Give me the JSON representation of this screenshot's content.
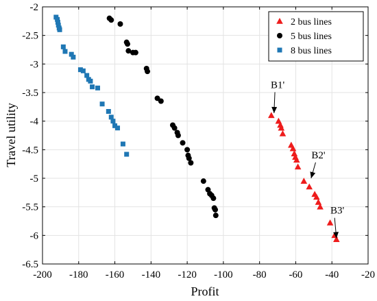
{
  "chart_data": {
    "type": "scatter",
    "title": "",
    "xlabel": "Profit",
    "ylabel": "Travel utility",
    "xlim": [
      -200,
      -20
    ],
    "ylim": [
      -6.5,
      -2
    ],
    "xticks": [
      -200,
      -180,
      -160,
      -140,
      -120,
      -100,
      -80,
      -60,
      -40,
      -20
    ],
    "yticks": [
      -6.5,
      -6,
      -5.5,
      -5,
      -4.5,
      -4,
      -3.5,
      -3,
      -2.5,
      -2
    ],
    "xtick_labels": [
      "-200",
      "-180",
      "-160",
      "-140",
      "-120",
      "-100",
      "-80",
      "-60",
      "-40",
      "-20"
    ],
    "ytick_labels": [
      "-6.5",
      "-6",
      "-5.5",
      "-5",
      "-4.5",
      "-4",
      "-3.5",
      "-3",
      "-2.5",
      "-2"
    ],
    "grid": true,
    "legend_position": "top-right",
    "series": [
      {
        "name": "2 bus lines",
        "marker": "triangle",
        "color": "#ee1c1c",
        "points": [
          [
            -73.5,
            -3.9
          ],
          [
            -69.5,
            -4.0
          ],
          [
            -68.5,
            -4.07
          ],
          [
            -68,
            -4.12
          ],
          [
            -67.2,
            -4.22
          ],
          [
            -62.5,
            -4.42
          ],
          [
            -61.5,
            -4.48
          ],
          [
            -60.8,
            -4.57
          ],
          [
            -60.2,
            -4.63
          ],
          [
            -59.5,
            -4.68
          ],
          [
            -58.8,
            -4.8
          ],
          [
            -55.5,
            -5.05
          ],
          [
            -52.5,
            -5.15
          ],
          [
            -49.5,
            -5.28
          ],
          [
            -48.5,
            -5.33
          ],
          [
            -47.5,
            -5.42
          ],
          [
            -46.5,
            -5.5
          ],
          [
            -41,
            -5.78
          ],
          [
            -38.5,
            -6.0
          ],
          [
            -37.5,
            -6.07
          ]
        ]
      },
      {
        "name": "5 bus lines",
        "marker": "circle",
        "color": "#000000",
        "points": [
          [
            -163,
            -2.2
          ],
          [
            -162,
            -2.23
          ],
          [
            -157,
            -2.3
          ],
          [
            -153.5,
            -2.62
          ],
          [
            -153,
            -2.65
          ],
          [
            -152.5,
            -2.77
          ],
          [
            -150,
            -2.8
          ],
          [
            -148.5,
            -2.8
          ],
          [
            -142.5,
            -3.08
          ],
          [
            -142,
            -3.13
          ],
          [
            -136.5,
            -3.6
          ],
          [
            -134.5,
            -3.65
          ],
          [
            -128,
            -4.07
          ],
          [
            -127,
            -4.12
          ],
          [
            -125.5,
            -4.2
          ],
          [
            -125,
            -4.25
          ],
          [
            -122.5,
            -4.38
          ],
          [
            -120,
            -4.5
          ],
          [
            -119.5,
            -4.6
          ],
          [
            -119,
            -4.65
          ],
          [
            -118,
            -4.73
          ],
          [
            -111,
            -5.05
          ],
          [
            -108.5,
            -5.2
          ],
          [
            -107.5,
            -5.27
          ],
          [
            -106.5,
            -5.3
          ],
          [
            -105.5,
            -5.35
          ],
          [
            -105,
            -5.52
          ],
          [
            -104.5,
            -5.55
          ],
          [
            -104.2,
            -5.65
          ]
        ]
      },
      {
        "name": "8 bus lines",
        "marker": "square",
        "color": "#1f77b4",
        "points": [
          [
            -192.5,
            -2.18
          ],
          [
            -191.8,
            -2.22
          ],
          [
            -191.5,
            -2.27
          ],
          [
            -191.2,
            -2.32
          ],
          [
            -190.8,
            -2.37
          ],
          [
            -190.5,
            -2.4
          ],
          [
            -188.5,
            -2.7
          ],
          [
            -187.5,
            -2.78
          ],
          [
            -184,
            -2.83
          ],
          [
            -183,
            -2.88
          ],
          [
            -179,
            -3.1
          ],
          [
            -177.5,
            -3.12
          ],
          [
            -175.5,
            -3.2
          ],
          [
            -174.5,
            -3.27
          ],
          [
            -173.5,
            -3.3
          ],
          [
            -172.5,
            -3.4
          ],
          [
            -169.5,
            -3.42
          ],
          [
            -167,
            -3.7
          ],
          [
            -163.5,
            -3.83
          ],
          [
            -162,
            -3.93
          ],
          [
            -161,
            -4.0
          ],
          [
            -160,
            -4.08
          ],
          [
            -158.5,
            -4.12
          ],
          [
            -155.5,
            -4.4
          ],
          [
            -153.5,
            -4.58
          ]
        ]
      }
    ],
    "annotations": [
      {
        "text": "B1'",
        "label_at": [
          -70,
          -3.42
        ],
        "arrow_to": [
          -72,
          -3.86
        ]
      },
      {
        "text": "B2'",
        "label_at": [
          -47.5,
          -4.65
        ],
        "arrow_to": [
          -51.5,
          -5.0
        ]
      },
      {
        "text": "B3'",
        "label_at": [
          -37,
          -5.62
        ],
        "arrow_to": [
          -37.5,
          -6.05
        ]
      }
    ]
  }
}
